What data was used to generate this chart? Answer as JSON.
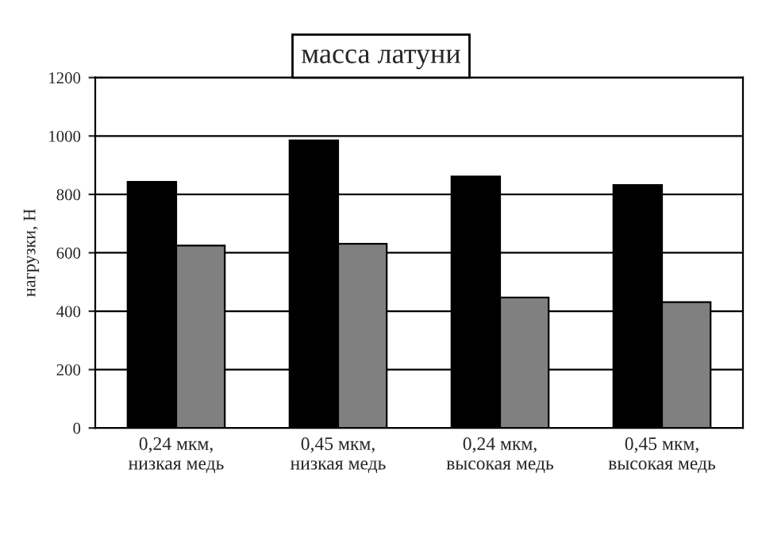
{
  "chart_data": {
    "type": "bar",
    "title": "масса латуни",
    "ylabel": "нагрузки, Н",
    "categories": [
      "0,24 мкм, низкая медь",
      "0,45 мкм, низкая медь",
      "0,24 мкм, высокая медь",
      "0,45 мкм, высокая медь"
    ],
    "series": [
      {
        "color": "#000000",
        "values": [
          843,
          985,
          861,
          832
        ]
      },
      {
        "color": "#808080",
        "values": [
          625,
          631,
          447,
          431
        ]
      }
    ],
    "ylim": [
      0,
      1200
    ],
    "yticks": [
      0,
      200,
      400,
      600,
      800,
      1000,
      1200
    ],
    "grid": "y",
    "legend": false
  }
}
